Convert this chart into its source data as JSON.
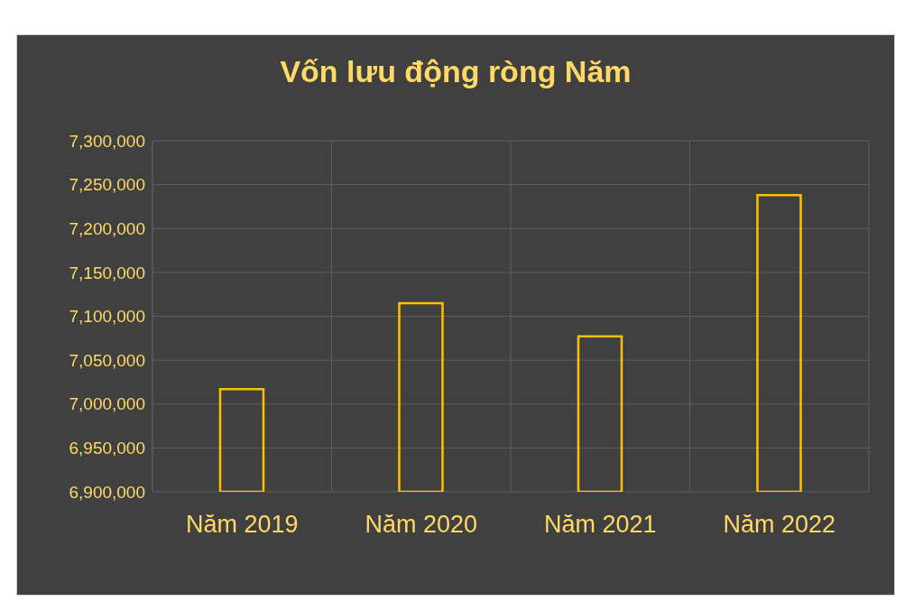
{
  "chart_data": {
    "type": "bar",
    "title": "Vốn lưu động ròng Năm",
    "categories": [
      "Năm 2019",
      "Năm 2020",
      "Năm 2021",
      "Năm 2022"
    ],
    "values": [
      7017000,
      7115000,
      7077000,
      7238000
    ],
    "color": "#ffc000",
    "ylim": [
      6900000,
      7300000
    ],
    "yticks": [
      {
        "value": 6900000,
        "label": "6,900,000"
      },
      {
        "value": 6950000,
        "label": "6,950,000"
      },
      {
        "value": 7000000,
        "label": "7,000,000"
      },
      {
        "value": 7050000,
        "label": "7,050,000"
      },
      {
        "value": 7100000,
        "label": "7,100,000"
      },
      {
        "value": 7150000,
        "label": "7,150,000"
      },
      {
        "value": 7200000,
        "label": "7,200,000"
      },
      {
        "value": 7250000,
        "label": "7,250,000"
      },
      {
        "value": 7300000,
        "label": "7,300,000"
      }
    ],
    "grid": true
  }
}
